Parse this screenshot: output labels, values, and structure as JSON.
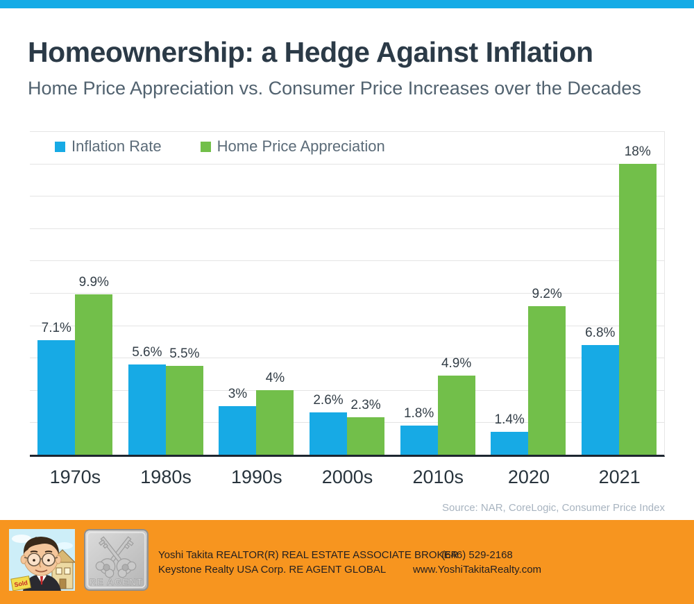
{
  "header": {
    "title": "Homeownership: a Hedge Against Inflation",
    "subtitle": "Home Price Appreciation vs. Consumer Price Increases over the Decades"
  },
  "chart_data": {
    "type": "bar",
    "categories": [
      "1970s",
      "1980s",
      "1990s",
      "2000s",
      "2010s",
      "2020",
      "2021"
    ],
    "series": [
      {
        "name": "Inflation Rate",
        "color": "#17aae5",
        "values": [
          7.1,
          5.6,
          3,
          2.6,
          1.8,
          1.4,
          6.8
        ],
        "labels": [
          "7.1%",
          "5.6%",
          "3%",
          "2.6%",
          "1.8%",
          "1.4%",
          "6.8%"
        ]
      },
      {
        "name": "Home Price Appreciation",
        "color": "#72bf4a",
        "values": [
          9.9,
          5.5,
          4,
          2.3,
          4.9,
          9.2,
          18
        ],
        "labels": [
          "9.9%",
          "5.5%",
          "4%",
          "2.3%",
          "4.9%",
          "9.2%",
          "18%"
        ]
      }
    ],
    "title": "Homeownership: a Hedge Against Inflation",
    "xlabel": "",
    "ylabel": "",
    "ylim": [
      0,
      20
    ],
    "gridline_step": 2,
    "grid": true,
    "legend_position": "top-left",
    "source": "Source: NAR, CoreLogic, Consumer Price Index"
  },
  "footer": {
    "agent_line1": "Yoshi Takita REALTOR(R) REAL ESTATE ASSOCIATE BROKER",
    "agent_line2": "Keystone Realty USA Corp.  RE AGENT GLOBAL",
    "phone": "(646) 529-2168",
    "website": "www.YoshiTakitaRealty.com",
    "logo_text": "RE AGENT",
    "sold_sign_text": "Sold",
    "background_color": "#f7951f"
  },
  "colors": {
    "top_bar": "#14abe6",
    "inflation_blue": "#17aae5",
    "appreciation_green": "#72bf4a",
    "axis": "#1d2630",
    "gridline": "#e4e4e4"
  }
}
